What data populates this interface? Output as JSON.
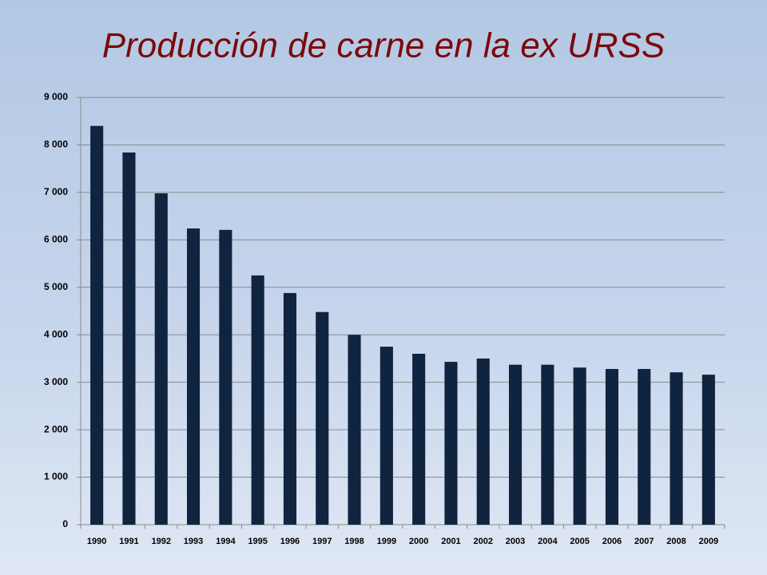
{
  "chart_data": {
    "type": "bar",
    "title": "Producción de carne en la ex URSS",
    "categories": [
      "1990",
      "1991",
      "1992",
      "1993",
      "1994",
      "1995",
      "1996",
      "1997",
      "1998",
      "1999",
      "2000",
      "2001",
      "2002",
      "2003",
      "2004",
      "2005",
      "2006",
      "2007",
      "2008",
      "2009"
    ],
    "values": [
      8400,
      7840,
      6980,
      6240,
      6210,
      5250,
      4880,
      4480,
      4000,
      3750,
      3600,
      3430,
      3500,
      3370,
      3370,
      3310,
      3280,
      3280,
      3210,
      3160
    ],
    "color": "#10243f",
    "ylim": [
      0,
      9000
    ],
    "yticks": [
      0,
      {
        "value": 1000,
        "label": "1 000"
      },
      {
        "value": 2000,
        "label": "2 000"
      },
      {
        "value": 3000,
        "label": "3 000"
      },
      {
        "value": 4000,
        "label": "4 000"
      },
      {
        "value": 5000,
        "label": "5 000"
      },
      {
        "value": 6000,
        "label": "6 000"
      },
      {
        "value": 7000,
        "label": "7 000"
      },
      {
        "value": 8000,
        "label": "8 000"
      },
      {
        "value": 9000,
        "label": "9 000"
      }
    ],
    "grid": true
  }
}
